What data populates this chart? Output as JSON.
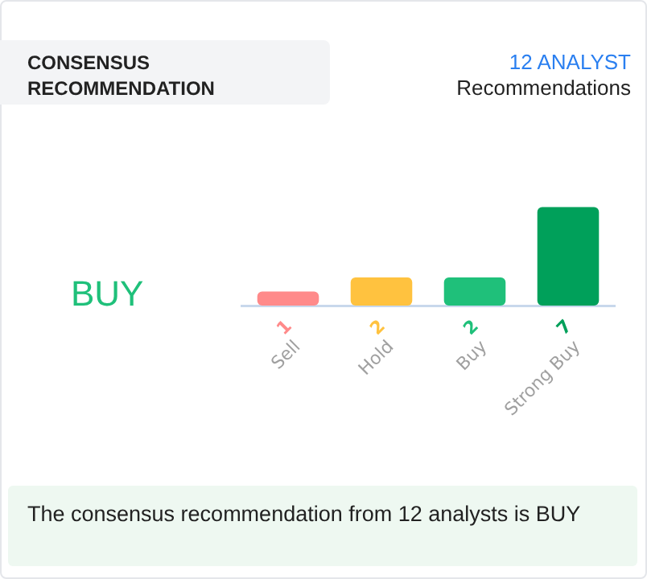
{
  "chart_data": {
    "type": "bar",
    "title": "CONSENSUS RECOMMENDATION",
    "subtitle": "12 ANALYST",
    "annotations": [
      "Recommendations",
      "BUY",
      "The consensus recommendation from 12 analysts is BUY"
    ],
    "categories": [
      "Sell",
      "Hold",
      "Buy",
      "Strong Buy"
    ],
    "values": [
      1,
      2,
      2,
      7
    ],
    "colors": [
      "#ff8a8a",
      "#ffc23f",
      "#1fc07a",
      "#00a05a"
    ],
    "data_labels": true,
    "grid": false,
    "legend": false
  }
}
